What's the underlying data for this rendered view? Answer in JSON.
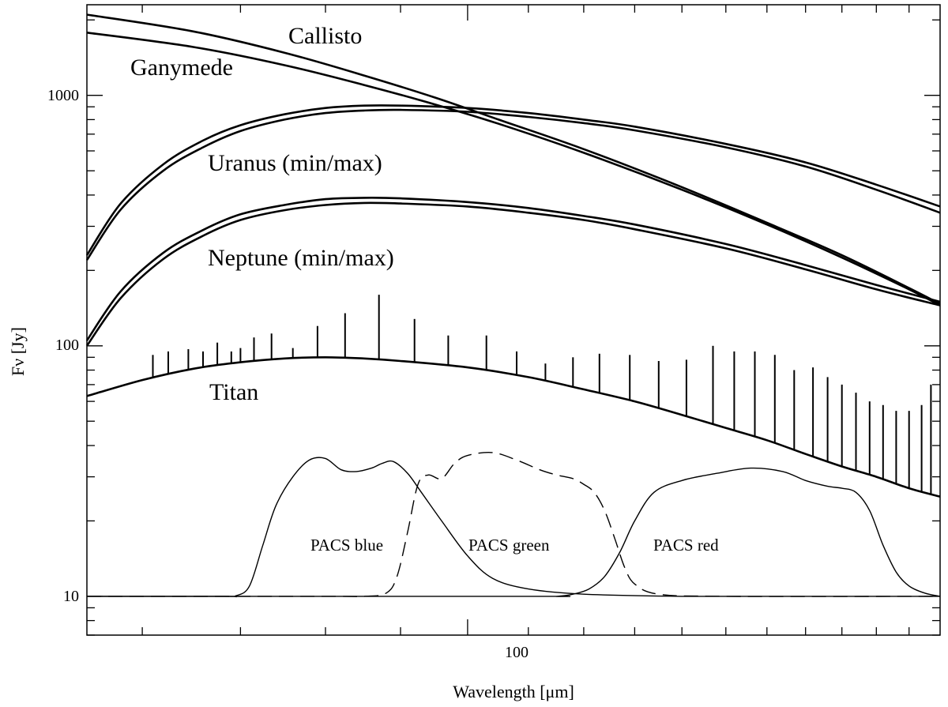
{
  "chart_data": {
    "type": "line",
    "title": "",
    "xlabel": "Wavelength [μm]",
    "ylabel": "Fν [Jy]",
    "xscale": "log",
    "yscale": "log",
    "xlim": [
      55,
      210
    ],
    "ylim": [
      7,
      2300
    ],
    "x_tick_labels": [
      {
        "value": 100,
        "label": "100"
      }
    ],
    "y_tick_labels": [
      {
        "value": 10,
        "label": "10"
      },
      {
        "value": 100,
        "label": "100"
      },
      {
        "value": 1000,
        "label": "1000"
      }
    ],
    "series": [
      {
        "name": "Callisto",
        "label": "Callisto",
        "style": "solid",
        "x": [
          55,
          65,
          75,
          85,
          95,
          105,
          120,
          140,
          160,
          180,
          200,
          210
        ],
        "y": [
          2100,
          1800,
          1480,
          1200,
          980,
          800,
          610,
          430,
          310,
          230,
          170,
          147
        ]
      },
      {
        "name": "Ganymede",
        "label": "Ganymede",
        "style": "solid",
        "x": [
          55,
          65,
          75,
          85,
          95,
          105,
          120,
          140,
          160,
          180,
          200,
          210
        ],
        "y": [
          1780,
          1560,
          1320,
          1100,
          920,
          770,
          590,
          420,
          305,
          225,
          168,
          145
        ]
      },
      {
        "name": "Uranus (max)",
        "label": "Uranus (min/max)",
        "style": "solid",
        "x": [
          55,
          58,
          62,
          66,
          70,
          75,
          80,
          85,
          90,
          100,
          110,
          120,
          130,
          150,
          170,
          190,
          210
        ],
        "y": [
          230,
          370,
          530,
          660,
          760,
          840,
          890,
          910,
          910,
          890,
          850,
          800,
          750,
          640,
          540,
          440,
          360
        ]
      },
      {
        "name": "Uranus (min)",
        "label": "",
        "style": "solid",
        "x": [
          55,
          58,
          62,
          66,
          70,
          75,
          80,
          85,
          90,
          100,
          110,
          120,
          130,
          150,
          170,
          190,
          210
        ],
        "y": [
          220,
          350,
          500,
          620,
          720,
          800,
          850,
          870,
          875,
          860,
          820,
          775,
          725,
          620,
          520,
          420,
          340
        ]
      },
      {
        "name": "Neptune (max)",
        "label": "Neptune (min/max)",
        "style": "solid",
        "x": [
          55,
          58,
          62,
          66,
          70,
          75,
          80,
          85,
          90,
          100,
          110,
          120,
          130,
          150,
          170,
          190,
          210
        ],
        "y": [
          105,
          165,
          235,
          290,
          335,
          365,
          385,
          390,
          388,
          375,
          355,
          330,
          305,
          255,
          210,
          175,
          150
        ]
      },
      {
        "name": "Neptune (min)",
        "label": "",
        "style": "solid",
        "x": [
          55,
          58,
          62,
          66,
          70,
          75,
          80,
          85,
          90,
          100,
          110,
          120,
          130,
          150,
          170,
          190,
          210
        ],
        "y": [
          100,
          155,
          222,
          275,
          318,
          348,
          365,
          372,
          370,
          360,
          340,
          318,
          292,
          245,
          202,
          168,
          145
        ]
      },
      {
        "name": "Titan",
        "label": "Titan",
        "style": "solid",
        "x": [
          55,
          60,
          65,
          70,
          75,
          80,
          85,
          90,
          100,
          110,
          120,
          130,
          140,
          150,
          160,
          170,
          180,
          190,
          200,
          210
        ],
        "y": [
          63,
          73,
          81,
          86,
          89,
          90,
          89,
          87,
          82,
          75,
          67,
          60,
          53,
          47,
          42,
          37,
          33,
          30,
          27,
          25
        ]
      },
      {
        "name": "PACS blue",
        "label": "PACS blue",
        "style": "solid",
        "x": [
          55,
          68,
          69.5,
          71,
          72.5,
          74,
          76,
          78,
          80,
          82,
          84,
          86,
          87.5,
          89,
          91,
          93,
          96,
          100,
          104,
          110,
          120,
          140,
          170,
          210
        ],
        "y": [
          10,
          10,
          10.05,
          11,
          16,
          23,
          30,
          35,
          35.5,
          32,
          31.5,
          32.5,
          34,
          34.5,
          31,
          26,
          20,
          14.5,
          11.8,
          10.7,
          10.2,
          10,
          10,
          10
        ]
      },
      {
        "name": "PACS green",
        "label": "PACS green",
        "style": "dashed",
        "x": [
          55,
          80,
          85,
          88,
          89.5,
          91,
          92.5,
          94,
          96,
          98,
          100,
          104,
          108,
          112,
          115,
          118,
          120,
          122,
          124,
          126,
          128,
          130,
          135,
          150,
          210
        ],
        "y": [
          10,
          10,
          10,
          10.3,
          12,
          18,
          28,
          30.5,
          29.5,
          34,
          36.5,
          37.5,
          35,
          32,
          30.5,
          29.5,
          28,
          26,
          22,
          17,
          13,
          11.2,
          10.2,
          10,
          10
        ]
      },
      {
        "name": "PACS red",
        "label": "PACS red",
        "style": "solid",
        "x": [
          55,
          110,
          115,
          118,
          121,
          124,
          127,
          130,
          134,
          140,
          148,
          156,
          164,
          170,
          176,
          180,
          184,
          188,
          192,
          196,
          200,
          205,
          210
        ],
        "y": [
          10,
          10,
          10,
          10.2,
          10.7,
          12,
          15,
          20,
          26,
          29,
          31,
          32.5,
          31.5,
          29,
          27.5,
          27,
          26,
          22,
          16,
          12.5,
          11,
          10.3,
          10
        ]
      }
    ],
    "annotations": [
      {
        "text": "Callisto",
        "series": "Callisto"
      },
      {
        "text": "Ganymede",
        "series": "Ganymede"
      },
      {
        "text": "Uranus (min/max)",
        "series": "Uranus"
      },
      {
        "text": "Neptune (min/max)",
        "series": "Neptune"
      },
      {
        "text": "Titan",
        "series": "Titan"
      },
      {
        "text": "PACS blue",
        "series": "PACS blue"
      },
      {
        "text": "PACS green",
        "series": "PACS green"
      },
      {
        "text": "PACS red",
        "series": "PACS red"
      }
    ],
    "titan_emission_lines": {
      "wavelengths": [
        61,
        62.5,
        64.5,
        66,
        67.5,
        69,
        70,
        71.5,
        73.5,
        76,
        79,
        82.5,
        87,
        92,
        97,
        103,
        108,
        113,
        118,
        123,
        129,
        135,
        141,
        147,
        152,
        157,
        162,
        167,
        172,
        176,
        180,
        184,
        188,
        192,
        196,
        200,
        204,
        207
      ],
      "peaks": [
        92,
        95,
        97,
        95,
        103,
        95,
        98,
        108,
        112,
        98,
        120,
        135,
        160,
        128,
        110,
        110,
        95,
        85,
        90,
        93,
        92,
        87,
        88,
        100,
        95,
        95,
        92,
        80,
        82,
        75,
        70,
        65,
        60,
        58,
        55,
        55,
        58,
        70
      ]
    }
  },
  "legend": {
    "placement": "inline"
  },
  "grid": false
}
